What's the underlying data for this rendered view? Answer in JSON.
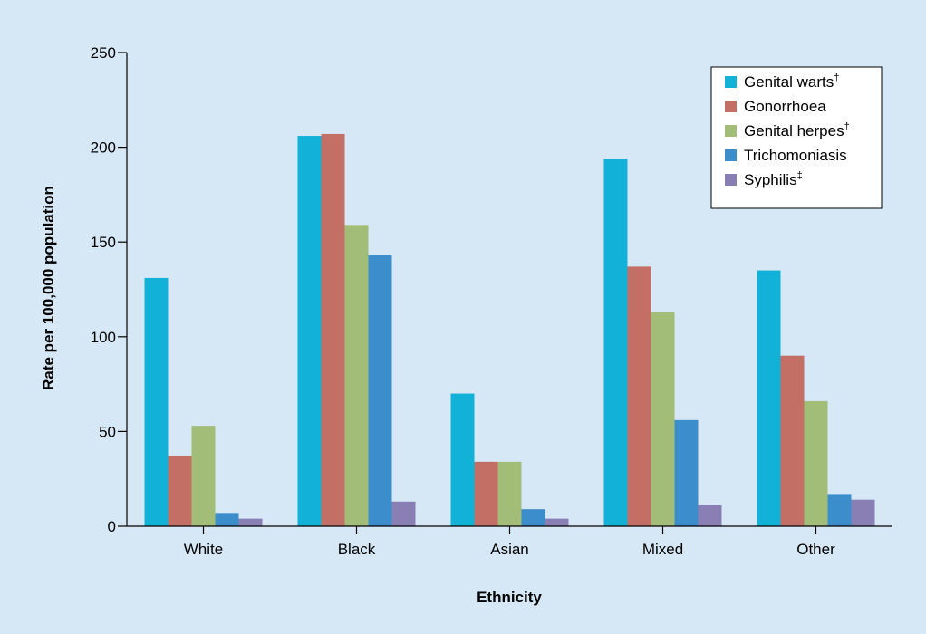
{
  "chart_data": {
    "type": "bar",
    "title": "",
    "xlabel": "Ethnicity",
    "ylabel": "Rate per 100,000 population",
    "ylim": [
      0,
      250
    ],
    "yticks": [
      "0",
      "50",
      "100",
      "150",
      "200",
      "250"
    ],
    "ytick_values": [
      0,
      50,
      100,
      150,
      200,
      250
    ],
    "grid": false,
    "legend_position": "top-right",
    "categories": [
      "White",
      "Black",
      "Asian",
      "Mixed",
      "Other"
    ],
    "series": [
      {
        "name": "Genital warts",
        "marker": "†",
        "color": "#12b1d8",
        "values": [
          131,
          206,
          70,
          194,
          135
        ]
      },
      {
        "name": "Gonorrhoea",
        "marker": "",
        "color": "#c36f65",
        "values": [
          37,
          207,
          34,
          137,
          90
        ]
      },
      {
        "name": "Genital herpes",
        "marker": "†",
        "color": "#a2bd77",
        "values": [
          53,
          159,
          34,
          113,
          66
        ]
      },
      {
        "name": "Trichomoniasis",
        "marker": "",
        "color": "#3b8ecb",
        "values": [
          7,
          143,
          9,
          56,
          17
        ]
      },
      {
        "name": "Syphilis",
        "marker": "‡",
        "color": "#8a7fb4",
        "values": [
          4,
          13,
          4,
          11,
          14
        ]
      }
    ]
  }
}
